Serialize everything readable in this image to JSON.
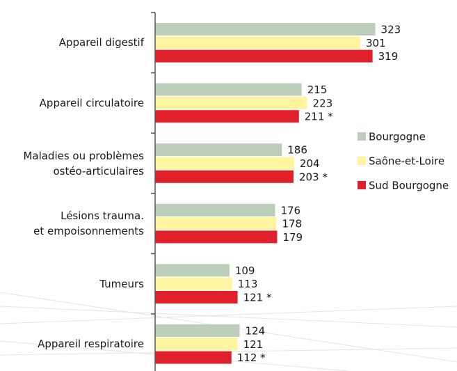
{
  "chart_data": {
    "type": "bar",
    "orientation": "horizontal",
    "categories": [
      "Appareil digestif",
      "Appareil circulatoire",
      "Maladies ou problèmes\nostéo-articulaires",
      "Lésions trauma.\net empoisonnements",
      "Tumeurs",
      "Appareil respiratoire"
    ],
    "series": [
      {
        "name": "Bourgogne",
        "color": "#bccfba",
        "values": [
          323,
          215,
          186,
          176,
          109,
          124
        ],
        "value_labels": [
          "323",
          "215",
          "186",
          "176",
          "109",
          "124"
        ]
      },
      {
        "name": "Saône-et-Loire",
        "color": "#fff4a0",
        "values": [
          301,
          223,
          204,
          178,
          113,
          121
        ],
        "value_labels": [
          "301",
          "223",
          "204",
          "178",
          "113",
          "121"
        ]
      },
      {
        "name": "Sud Bourgogne",
        "color": "#e0202a",
        "values": [
          319,
          211,
          203,
          179,
          121,
          112
        ],
        "value_labels": [
          "319",
          "211 *",
          "203 *",
          "179",
          "121 *",
          "112 *"
        ]
      }
    ],
    "xlim": [
      0,
      400
    ],
    "legend": "right"
  }
}
